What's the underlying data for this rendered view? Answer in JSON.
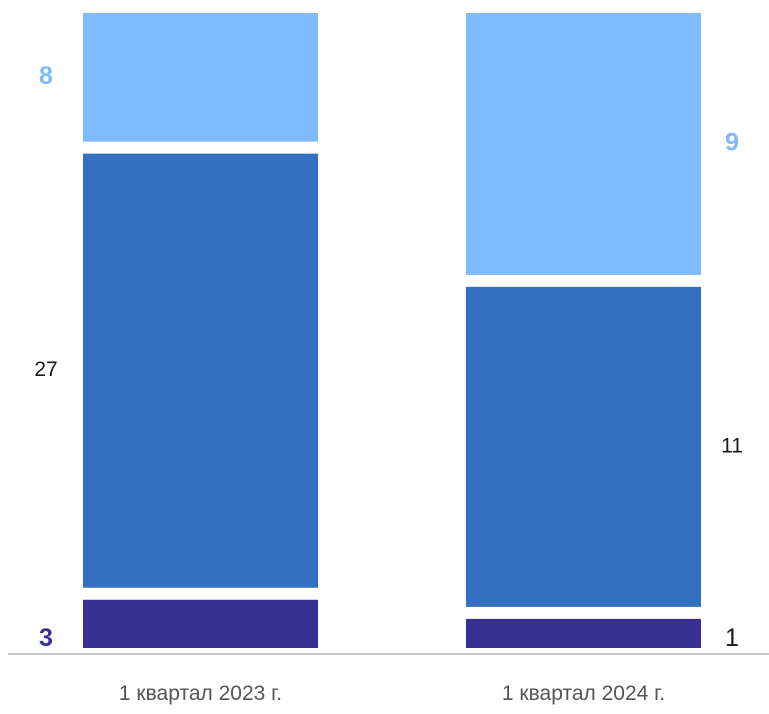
{
  "chart_data": {
    "type": "bar",
    "stacked": true,
    "categories": [
      "1 квартал 2023 г.",
      "1 квартал 2024 г."
    ],
    "series": [
      {
        "values": [
          3,
          1
        ],
        "color": "#373194",
        "label_color": "#373194",
        "label_bold": true
      },
      {
        "values": [
          27,
          11
        ],
        "color": "#3470C1",
        "label_color": "#1a1a1a",
        "label_bold": false
      },
      {
        "values": [
          8,
          9
        ],
        "color": "#7EBBFC",
        "label_color": "#7EBBFC",
        "label_bold": true
      }
    ],
    "title": "",
    "xlabel": "",
    "ylabel": "",
    "grid": false,
    "legend": "none",
    "baseline_color": "#c7c7c7",
    "tick_color": "#555555"
  }
}
